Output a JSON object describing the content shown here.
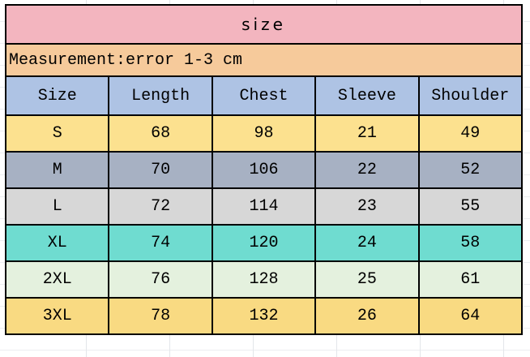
{
  "chart_data": {
    "type": "table",
    "title": "size",
    "note": "Measurement:error 1-3 cm",
    "columns": [
      "Size",
      "Length",
      "Chest",
      "Sleeve",
      "Shoulder"
    ],
    "rows": [
      {
        "cells": [
          "S",
          "68",
          "98",
          "21",
          "49"
        ],
        "row_color": "#fce18f"
      },
      {
        "cells": [
          "M",
          "70",
          "106",
          "22",
          "52"
        ],
        "row_color": "#a7b1c3"
      },
      {
        "cells": [
          "L",
          "72",
          "114",
          "23",
          "55"
        ],
        "row_color": "#d7d7d7"
      },
      {
        "cells": [
          "XL",
          "74",
          "120",
          "24",
          "58"
        ],
        "row_color": "#6fdcd0"
      },
      {
        "cells": [
          "2XL",
          "76",
          "128",
          "25",
          "61"
        ],
        "row_color": "#e4f1de"
      },
      {
        "cells": [
          "3XL",
          "78",
          "132",
          "26",
          "64"
        ],
        "row_color": "#f9da82"
      }
    ],
    "colors": {
      "title_bg": "#f3b5bf",
      "note_bg": "#f6ca9b",
      "header_bg": "#aec3e4",
      "border": "#000000",
      "text": "#000000"
    },
    "layout": {
      "grid": "all black cell borders",
      "note_align": "left",
      "cell_align": "center"
    }
  }
}
